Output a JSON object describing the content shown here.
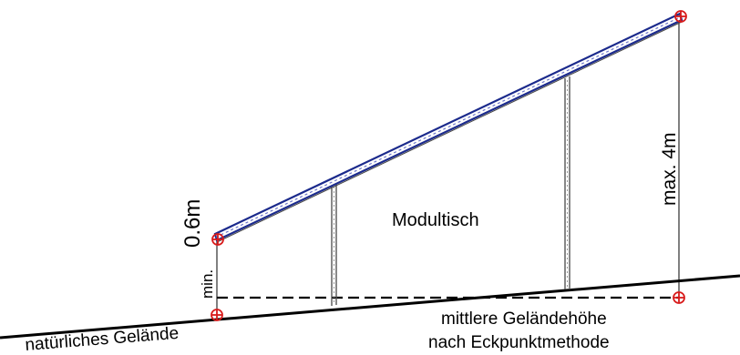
{
  "labels": {
    "min": "min.",
    "height_min": "0.6m",
    "height_max": "max. 4m",
    "module_table": "Modultisch",
    "natural_terrain": "natürliches Gelände",
    "mean_height_line1": "mittlere Geländehöhe",
    "mean_height_line2": "nach Eckpunktmethode"
  },
  "colors": {
    "panel_border": "#1b2a8c",
    "panel_fill": "#ffffff",
    "marker": "#d81b1b",
    "lines": "#000000"
  },
  "icons": {
    "corner_marker": "crossed-circle-icon"
  }
}
